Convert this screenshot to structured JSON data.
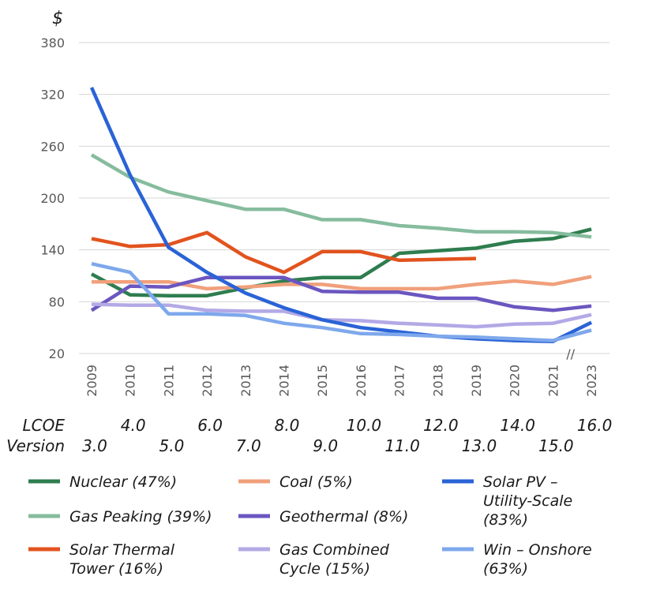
{
  "chart_data": {
    "type": "line",
    "y_unit_label": "$",
    "ylim": [
      20,
      380
    ],
    "yticks": [
      20,
      80,
      140,
      200,
      260,
      320,
      380
    ],
    "grid": true,
    "categories": [
      "2009",
      "2010",
      "2011",
      "2012",
      "2013",
      "2014",
      "2015",
      "2016",
      "2017",
      "2018",
      "2019",
      "2020",
      "2021",
      "2023"
    ],
    "axis_break_mark": "//",
    "version_row_label": [
      "LCOE",
      "Version"
    ],
    "versions": [
      "3.0",
      "4.0",
      "5.0",
      "6.0",
      "7.0",
      "8.0",
      "9.0",
      "10.0",
      "11.0",
      "12.0",
      "13.0",
      "14.0",
      "15.0",
      "16.0"
    ],
    "series": [
      {
        "name": "Nuclear (47%)",
        "label_lines": [
          "Nuclear (47%)"
        ],
        "color": "#2e7d4f",
        "values": [
          112,
          88,
          87,
          87,
          96,
          104,
          108,
          108,
          136,
          139,
          142,
          150,
          153,
          164
        ]
      },
      {
        "name": "Gas Peaking (39%)",
        "label_lines": [
          "Gas Peaking (39%)"
        ],
        "color": "#86bc9e",
        "values": [
          250,
          224,
          207,
          197,
          187,
          187,
          175,
          175,
          168,
          165,
          161,
          161,
          160,
          155
        ]
      },
      {
        "name": "Solar Thermal Tower (16%)",
        "label_lines": [
          "Solar Thermal",
          "Tower (16%)"
        ],
        "color": "#e2531e",
        "values": [
          153,
          144,
          146,
          160,
          132,
          114,
          138,
          138,
          128,
          129,
          130,
          null,
          null,
          null
        ]
      },
      {
        "name": "Coal (5%)",
        "label_lines": [
          "Coal (5%)"
        ],
        "color": "#f0a07c",
        "values": [
          103,
          103,
          103,
          95,
          97,
          100,
          100,
          95,
          95,
          95,
          100,
          104,
          100,
          109
        ]
      },
      {
        "name": "Geothermal (8%)",
        "label_lines": [
          "Geothermal (8%)"
        ],
        "color": "#6b56c0",
        "values": [
          70,
          98,
          97,
          108,
          108,
          108,
          92,
          91,
          91,
          84,
          84,
          74,
          70,
          75
        ]
      },
      {
        "name": "Gas Combined Cycle (15%)",
        "label_lines": [
          "Gas Combined",
          "Cycle (15%)"
        ],
        "color": "#b3a9e6",
        "values": [
          77,
          76,
          76,
          70,
          69,
          69,
          59,
          58,
          55,
          53,
          51,
          54,
          55,
          65
        ]
      },
      {
        "name": "Solar PV – Utility-Scale (83%)",
        "label_lines": [
          "Solar PV –",
          "Utility-Scale",
          "(83%)"
        ],
        "color": "#2a63d6",
        "values": [
          328,
          227,
          143,
          114,
          90,
          73,
          59,
          50,
          45,
          40,
          37,
          35,
          34,
          56
        ]
      },
      {
        "name": "Win – Onshore (63%)",
        "label_lines": [
          "Win – Onshore",
          "(63%)"
        ],
        "color": "#7ea8ec",
        "values": [
          124,
          114,
          66,
          66,
          64,
          55,
          50,
          43,
          42,
          40,
          39,
          37,
          35,
          47
        ]
      }
    ]
  }
}
